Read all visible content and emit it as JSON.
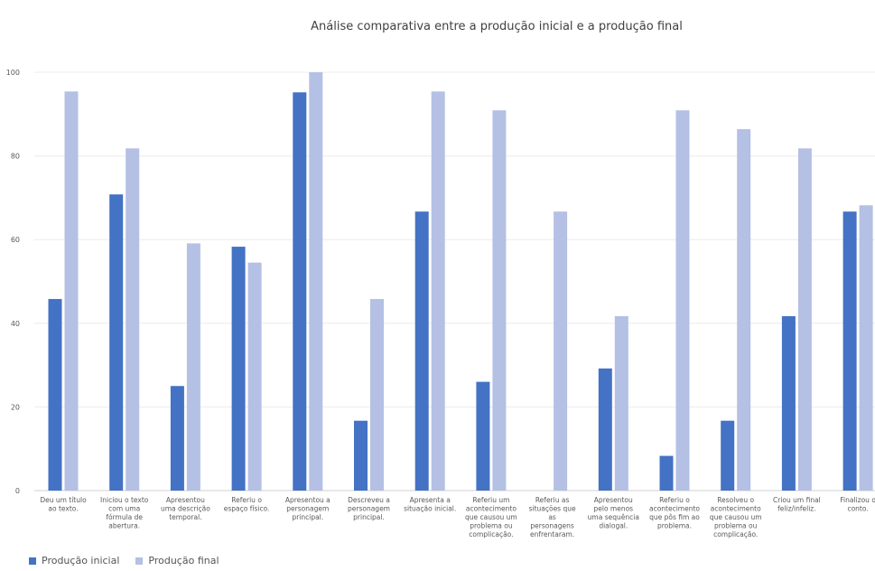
{
  "chart_data": {
    "type": "bar",
    "title": "Análise comparativa entre a produção inicial e a produção final",
    "xlabel": "",
    "ylabel": "",
    "ylim": [
      0,
      100
    ],
    "yticks": [
      0,
      20,
      40,
      60,
      80,
      100
    ],
    "grid": true,
    "legend_position": "bottom-left",
    "categories": [
      "Deu um título ao texto.",
      "Iniciou o texto com uma fórmula de abertura.",
      "Apresentou uma descrição temporal.",
      "Referiu o espaço físico.",
      "Apresentou a personagem principal.",
      "Descreveu a personagem principal.",
      "Apresenta a situação inicial.",
      "Referiu um acontecimento que causou um problema ou complicação.",
      "Referiu as situações que as personagens enfrentaram.",
      "Apresentou pelo menos uma sequência dialogal.",
      "Referiu o acontecimento que pôs fim ao problema.",
      "Resolveu o acontecimento que causou um problema ou complicação.",
      "Criou um final feliz/infeliz.",
      "Finalizou o conto."
    ],
    "category_lines": [
      [
        "Deu um título",
        "ao texto."
      ],
      [
        "Iniciou o texto",
        "com uma",
        "fórmula de",
        "abertura."
      ],
      [
        "Apresentou",
        "uma descrição",
        "temporal."
      ],
      [
        "Referiu o",
        "espaço físico."
      ],
      [
        "Apresentou a",
        "personagem",
        "principal."
      ],
      [
        "Descreveu a",
        "personagem",
        "principal."
      ],
      [
        "Apresenta a",
        "situação inicial."
      ],
      [
        "Referiu um",
        "acontecimento",
        "que causou um",
        "problema ou",
        "complicação."
      ],
      [
        "Referiu as",
        "situações que",
        "as",
        "personagens",
        "enfrentaram."
      ],
      [
        "Apresentou",
        "pelo menos",
        "uma sequência",
        "dialogal."
      ],
      [
        "Referiu o",
        "acontecimento",
        "que pôs fim ao",
        "problema."
      ],
      [
        "Resolveu o",
        "acontecimento",
        "que causou um",
        "problema ou",
        "complicação."
      ],
      [
        "Criou um final",
        "feliz/infeliz."
      ],
      [
        "Finalizou o",
        "conto."
      ]
    ],
    "series": [
      {
        "name": "Produção inicial",
        "color": "#4472c4",
        "values": [
          45.8,
          70.8,
          25,
          58.3,
          95.2,
          16.7,
          66.7,
          26,
          0,
          29.2,
          8.3,
          16.7,
          41.7,
          66.7
        ]
      },
      {
        "name": "Produção final",
        "color": "#b4c0e4",
        "values": [
          95.4,
          81.8,
          59.1,
          54.5,
          100,
          45.8,
          95.4,
          90.9,
          66.7,
          41.7,
          90.9,
          86.4,
          81.8,
          68.2
        ]
      }
    ]
  }
}
